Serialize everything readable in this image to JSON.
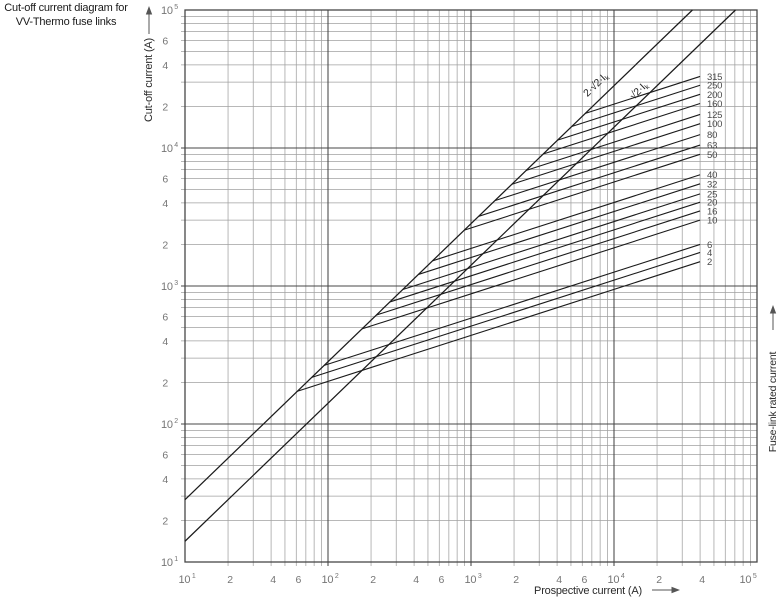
{
  "title": {
    "line1": "Cut-off current diagram for",
    "line2": "VV-Thermo fuse links"
  },
  "right_label": "Fuse-link rated current",
  "axes": {
    "x": {
      "label": "Prospective current (A)",
      "scale": "log",
      "min": 10,
      "max": 100000,
      "ticks": [
        {
          "label": "10^1",
          "v": 10
        },
        {
          "label": "2",
          "v": 20
        },
        {
          "label": "4",
          "v": 40
        },
        {
          "label": "6",
          "v": 60
        },
        {
          "label": "10^2",
          "v": 100
        },
        {
          "label": "2",
          "v": 200
        },
        {
          "label": "4",
          "v": 400
        },
        {
          "label": "6",
          "v": 600
        },
        {
          "label": "10^3",
          "v": 1000
        },
        {
          "label": "2",
          "v": 2000
        },
        {
          "label": "4",
          "v": 4000
        },
        {
          "label": "6",
          "v": 6000
        },
        {
          "label": "10^4",
          "v": 10000
        },
        {
          "label": "2",
          "v": 20000
        },
        {
          "label": "4",
          "v": 40000
        },
        {
          "label": "10^5",
          "v": 100000
        }
      ]
    },
    "y": {
      "label": "Cut-off current (A)",
      "scale": "log",
      "min": 10,
      "max": 100000,
      "ticks": [
        {
          "label": "10^5",
          "v": 100000
        },
        {
          "label": "6",
          "v": 60000
        },
        {
          "label": "4",
          "v": 40000
        },
        {
          "label": "2",
          "v": 20000
        },
        {
          "label": "10^4",
          "v": 10000
        },
        {
          "label": "6",
          "v": 6000
        },
        {
          "label": "4",
          "v": 4000
        },
        {
          "label": "2",
          "v": 2000
        },
        {
          "label": "10^3",
          "v": 1000
        },
        {
          "label": "6",
          "v": 600
        },
        {
          "label": "4",
          "v": 400
        },
        {
          "label": "2",
          "v": 200
        },
        {
          "label": "10^2",
          "v": 100
        },
        {
          "label": "6",
          "v": 60
        },
        {
          "label": "4",
          "v": 40
        },
        {
          "label": "2",
          "v": 20
        },
        {
          "label": "10^1",
          "v": 10
        }
      ]
    }
  },
  "chart_data": {
    "type": "line",
    "title": "Cut-off current diagram for VV-Thermo fuse links",
    "xlabel": "Prospective current (A)",
    "ylabel": "Cut-off current (A)",
    "x_range": [
      10,
      100000
    ],
    "y_range": [
      10,
      100000
    ],
    "log_x": true,
    "log_y": true,
    "grid": "full log-log grid, subdivisions 2-9 each decade",
    "model": "Each fuse-link curve branches off the 2·√2·Ik peak line and rises with slope 1/3 (log-log) up to a prospective current of 40 kA",
    "reference_lines": [
      {
        "name": "asymmetrical-peak",
        "label_main": "2·√2·I",
        "label_sub": "k",
        "factor": 2.828
      },
      {
        "name": "symmetrical-peak",
        "label_main": "√2·I",
        "label_sub": "k",
        "factor": 1.414
      }
    ],
    "slope_loglog": 0.3333,
    "prospective_end": 40000,
    "series": [
      {
        "rating": "315",
        "cutoff_at_end": 33000
      },
      {
        "rating": "250",
        "cutoff_at_end": 28500
      },
      {
        "rating": "200",
        "cutoff_at_end": 24500
      },
      {
        "rating": "160",
        "cutoff_at_end": 21000
      },
      {
        "rating": "125",
        "cutoff_at_end": 17500
      },
      {
        "rating": "100",
        "cutoff_at_end": 15000
      },
      {
        "rating": "80",
        "cutoff_at_end": 12500
      },
      {
        "rating": "63",
        "cutoff_at_end": 10500
      },
      {
        "rating": "50",
        "cutoff_at_end": 9000
      },
      {
        "rating": "40",
        "cutoff_at_end": 6400
      },
      {
        "rating": "32",
        "cutoff_at_end": 5500
      },
      {
        "rating": "25",
        "cutoff_at_end": 4650
      },
      {
        "rating": "20",
        "cutoff_at_end": 4050
      },
      {
        "rating": "16",
        "cutoff_at_end": 3500
      },
      {
        "rating": "10",
        "cutoff_at_end": 3000
      },
      {
        "rating": "6",
        "cutoff_at_end": 2000
      },
      {
        "rating": "4",
        "cutoff_at_end": 1750
      },
      {
        "rating": "2",
        "cutoff_at_end": 1500
      }
    ]
  },
  "colors": {
    "background": "#ffffff",
    "grid_minor": "#a0a0a0",
    "grid_major": "#474747",
    "curve": "#1b1b1b",
    "text_dark": "#222222",
    "text_gray": "#757575",
    "rating_label": "#4a4a4a"
  }
}
